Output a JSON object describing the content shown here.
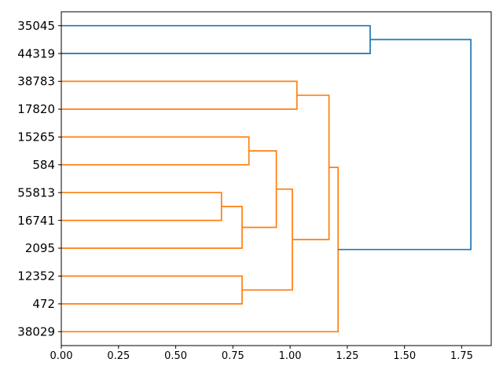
{
  "figure": {
    "background": "#ffffff",
    "border_color": "#000000"
  },
  "chart_data": {
    "type": "dendrogram",
    "orientation": "right",
    "title": "",
    "xlabel": "",
    "ylabel": "",
    "grid": false,
    "legend": null,
    "xlim": [
      0,
      1.879
    ],
    "xticks": [
      "0.00",
      "0.25",
      "0.50",
      "0.75",
      "1.00",
      "1.25",
      "1.50",
      "1.75"
    ],
    "leaves": [
      "35045",
      "44319",
      "38783",
      "17820",
      "15265",
      "584",
      "55813",
      "16741",
      "2095",
      "12352",
      "472",
      "38029"
    ],
    "links": [
      {
        "id": "m0",
        "a": "55813",
        "b": "16741",
        "distance": 0.7,
        "color": "#ff7f0e"
      },
      {
        "id": "m1",
        "a": "12352",
        "b": "472",
        "distance": 0.79,
        "color": "#ff7f0e"
      },
      {
        "id": "m2",
        "a": "m0",
        "b": "2095",
        "distance": 0.79,
        "color": "#ff7f0e"
      },
      {
        "id": "m3",
        "a": "15265",
        "b": "584",
        "distance": 0.82,
        "color": "#ff7f0e"
      },
      {
        "id": "m4",
        "a": "m3",
        "b": "m2",
        "distance": 0.94,
        "color": "#ff7f0e"
      },
      {
        "id": "m5",
        "a": "m4",
        "b": "m1",
        "distance": 1.01,
        "color": "#ff7f0e"
      },
      {
        "id": "m6",
        "a": "38783",
        "b": "17820",
        "distance": 1.03,
        "color": "#ff7f0e"
      },
      {
        "id": "m7",
        "a": "m6",
        "b": "m5",
        "distance": 1.17,
        "color": "#ff7f0e"
      },
      {
        "id": "m8",
        "a": "m7",
        "b": "38029",
        "distance": 1.21,
        "color": "#ff7f0e"
      },
      {
        "id": "m9",
        "a": "35045",
        "b": "44319",
        "distance": 1.35,
        "color": "#1f77b4"
      },
      {
        "id": "m10",
        "a": "m9",
        "b": "m8",
        "distance": 1.79,
        "color": "#1f77b4"
      }
    ],
    "colors": {
      "above_threshold_link": "#1f77b4",
      "cluster_link": "#ff7f0e",
      "axis": "#000000"
    }
  }
}
